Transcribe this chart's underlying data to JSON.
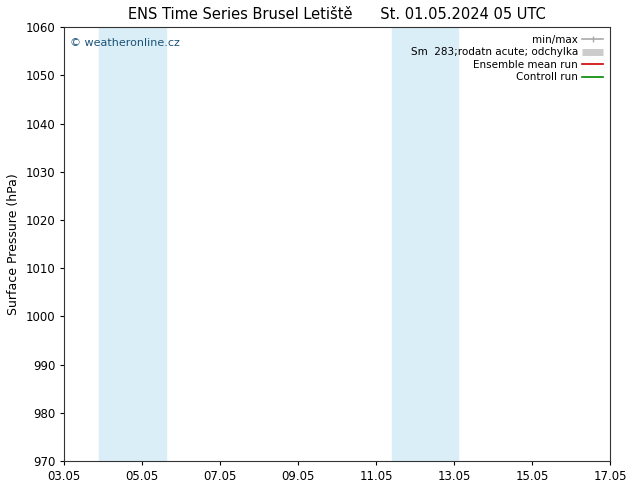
{
  "title_left": "ENS Time Series Brusel Letiště",
  "title_right": "St. 01.05.2024 05 UTC",
  "ylabel": "Surface Pressure (hPa)",
  "ylim": [
    970,
    1060
  ],
  "yticks": [
    970,
    980,
    990,
    1000,
    1010,
    1020,
    1030,
    1040,
    1050,
    1060
  ],
  "xlim": [
    3,
    17
  ],
  "xtick_labels": [
    "03.05",
    "05.05",
    "07.05",
    "09.05",
    "11.05",
    "13.05",
    "15.05",
    "17.05"
  ],
  "xtick_positions": [
    3,
    5,
    7,
    9,
    11,
    13,
    15,
    17
  ],
  "shaded_bands": [
    {
      "xmin": 3.9,
      "xmax": 5.6,
      "color": "#daeef8"
    },
    {
      "xmin": 11.4,
      "xmax": 13.1,
      "color": "#daeef8"
    }
  ],
  "watermark": "© weatheronline.cz",
  "watermark_color": "#1a5276",
  "legend_entries": [
    {
      "label": "min/max",
      "color": "#aaaaaa",
      "lw": 1.2
    },
    {
      "label": "Sm  283;rodatn acute; odchylka",
      "color": "#cccccc",
      "lw": 5
    },
    {
      "label": "Ensemble mean run",
      "color": "#cc0000",
      "lw": 1.2
    },
    {
      "label": "Controll run",
      "color": "#008800",
      "lw": 1.2
    }
  ],
  "background_color": "#ffffff",
  "title_fontsize": 10.5,
  "axis_label_fontsize": 9,
  "tick_fontsize": 8.5,
  "watermark_fontsize": 8,
  "legend_fontsize": 7.5
}
